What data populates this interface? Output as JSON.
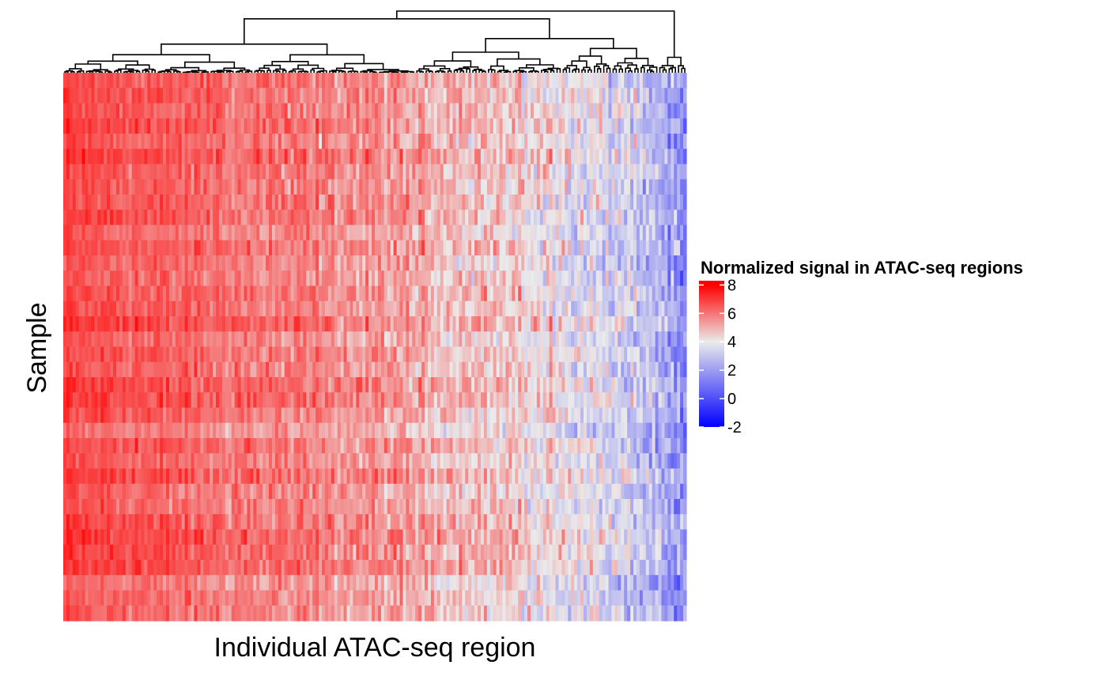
{
  "chart_data": {
    "type": "heatmap",
    "xlabel": "Individual ATAC-seq region",
    "ylabel": "Sample",
    "n_rows": 36,
    "n_cols": 200,
    "column_dendrogram": true,
    "column_order": "clustered, high signal (left) to low signal (right)",
    "colorscale": {
      "title": "Normalized signal in ATAC-seq regions",
      "stops": [
        {
          "value": -2,
          "color": "#0000ff"
        },
        {
          "value": 4,
          "color": "#ebebeb"
        },
        {
          "value": 8,
          "color": "#ff0000"
        }
      ],
      "ticks": [
        "8",
        "6",
        "4",
        "2",
        "0",
        "-2"
      ],
      "tick_values": [
        8,
        6,
        4,
        2,
        0,
        -2
      ],
      "range": [
        -2,
        8.3
      ]
    },
    "column_mean_profile": [
      {
        "fraction": 0.0,
        "value": 6.7
      },
      {
        "fraction": 0.25,
        "value": 6.1
      },
      {
        "fraction": 0.5,
        "value": 5.4
      },
      {
        "fraction": 0.7,
        "value": 4.6
      },
      {
        "fraction": 0.85,
        "value": 3.7
      },
      {
        "fraction": 0.95,
        "value": 2.8
      },
      {
        "fraction": 1.0,
        "value": 1.4
      }
    ],
    "legend_position": "right",
    "grid": false
  }
}
